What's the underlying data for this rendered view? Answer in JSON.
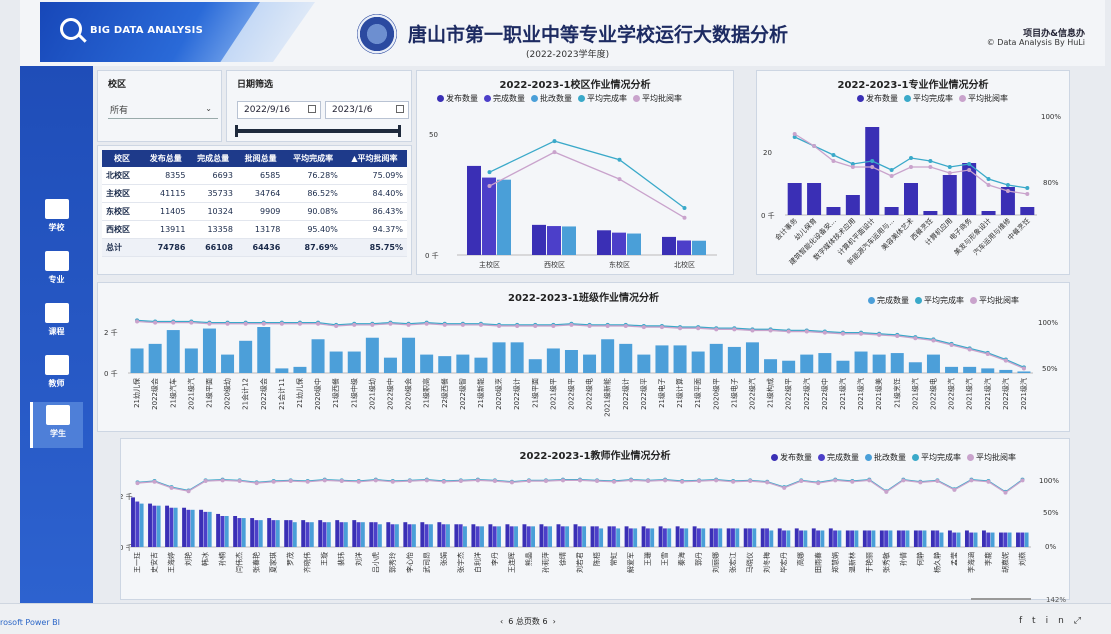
{
  "header": {
    "brand": "BIG DATA ANALYSIS",
    "title": "唐山市第一职业中等专业学校运行大数据分析",
    "subtitle": "(2022-2023学年度)",
    "org": "项目办&信息办",
    "copyright": "© Data Analysis By HuLi"
  },
  "nav": [
    {
      "label": "学校",
      "icon": "school-icon"
    },
    {
      "label": "专业",
      "icon": "briefcase-icon"
    },
    {
      "label": "课程",
      "icon": "course-icon"
    },
    {
      "label": "教师",
      "icon": "teacher-icon"
    },
    {
      "label": "学生",
      "icon": "student-icon"
    }
  ],
  "filters": {
    "campus_label": "校区",
    "campus_value": "所有",
    "date_label": "日期筛选",
    "date_start": "2022/9/16",
    "date_end": "2023/1/6"
  },
  "summary_table": {
    "headers": [
      "校区",
      "发布总量",
      "完成总量",
      "批阅总量",
      "平均完成率",
      "平均批阅率"
    ],
    "sort_mark": "▲",
    "rows": [
      [
        "北校区",
        "8355",
        "6693",
        "6585",
        "76.28%",
        "75.09%"
      ],
      [
        "主校区",
        "41115",
        "35733",
        "34764",
        "86.52%",
        "84.40%"
      ],
      [
        "东校区",
        "11405",
        "10324",
        "9909",
        "90.08%",
        "86.43%"
      ],
      [
        "西校区",
        "13911",
        "13358",
        "13178",
        "95.40%",
        "94.37%"
      ]
    ],
    "total": [
      "总计",
      "74786",
      "66108",
      "64436",
      "87.69%",
      "85.75%"
    ]
  },
  "colors": {
    "publish": "#3a2fb5",
    "complete": "#4c3fc9",
    "review": "#4a9fd8",
    "avg_complete": "#3aa9c9",
    "avg_review": "#c9a3cc",
    "bar_blue": "#4c9fd9"
  },
  "campus_chart": {
    "title": "2022-2023-1校区作业情况分析",
    "legend": [
      "发布数量",
      "完成数量",
      "批改数量",
      "平均完成率",
      "平均批阅率"
    ],
    "y_ticks": [
      "50",
      "0 千"
    ],
    "chart_data": {
      "type": "bar",
      "categories": [
        "主校区",
        "西校区",
        "东校区",
        "北校区"
      ],
      "series": [
        {
          "name": "发布数量",
          "values": [
            41115,
            13911,
            11405,
            8355
          ]
        },
        {
          "name": "完成数量",
          "values": [
            35733,
            13358,
            10324,
            6693
          ]
        },
        {
          "name": "批改数量",
          "values": [
            34764,
            13178,
            9909,
            6585
          ]
        },
        {
          "name": "平均完成率",
          "values": [
            86.52,
            95.4,
            90.08,
            76.28
          ]
        },
        {
          "name": "平均批阅率",
          "values": [
            84.4,
            94.37,
            86.43,
            75.09
          ]
        }
      ],
      "ylim": [
        0,
        60
      ]
    }
  },
  "major_chart": {
    "title": "2022-2023-1专业作业情况分析",
    "legend": [
      "发布数量",
      "平均完成率",
      "平均批阅率"
    ],
    "y_ticks_left": [
      "20",
      "0 千"
    ],
    "y_ticks_right": [
      "100%",
      "80%"
    ],
    "chart_data": {
      "type": "bar",
      "categories": [
        "会计事务",
        "幼儿保育",
        "建筑智能化设备安...",
        "数字媒体技术应用",
        "计算机平面设计",
        "新能源汽车运用与...",
        "美容美体艺术",
        "西餐烹饪",
        "计算机应用",
        "电子商务",
        "美发与形象设计",
        "汽车运用与维修",
        "中餐烹饪"
      ],
      "series": [
        {
          "name": "发布数量",
          "values": [
            8,
            8,
            2,
            5,
            22,
            2,
            8,
            1,
            10,
            13,
            1,
            7,
            2
          ]
        },
        {
          "name": "平均完成率",
          "values": [
            96,
            93,
            90,
            87,
            88,
            85,
            89,
            88,
            86,
            87,
            82,
            80,
            79
          ]
        },
        {
          "name": "平均批阅率",
          "values": [
            97,
            93,
            88,
            86,
            86,
            83,
            86,
            86,
            84,
            85,
            80,
            78,
            77
          ]
        }
      ],
      "ylim": [
        0,
        25
      ]
    }
  },
  "class_chart": {
    "title": "2022-2023-1班级作业情况分析",
    "legend": [
      "完成数量",
      "平均完成率",
      "平均批阅率"
    ],
    "y_ticks_left": [
      "2 千",
      "0 千"
    ],
    "y_ticks_right": [
      "100%",
      "50%"
    ],
    "chart_data": {
      "type": "bar",
      "categories": [
        "21幼儿保",
        "2022级会",
        "21级汽车",
        "2021级汽",
        "21级平面",
        "2020级幼",
        "21会计12",
        "2022级会",
        "21会计11",
        "21幼儿保",
        "2020级中",
        "21级西餐",
        "21级中级",
        "2021级幼",
        "2022级中",
        "2020级会",
        "21级职高",
        "22级西餐",
        "2022级智",
        "21级新能",
        "2020级烹",
        "2022级计",
        "21级平面",
        "2021级平",
        "2022级平",
        "2022级电",
        "2021级新能",
        "2022级计",
        "2022级平",
        "21级电子",
        "21级计算",
        "21级平面",
        "2020级平",
        "21级电子",
        "2022级汽",
        "21级构成",
        "2022级平",
        "2022级汽",
        "2022级中",
        "2021级汽",
        "2021级汽",
        "2021级美",
        "21级烹饪",
        "2021级汽",
        "2022级电",
        "2022级汽",
        "2021级汽",
        "2021级汽",
        "2022级汽",
        "2021级汽"
      ],
      "series": [
        {
          "name": "完成数量",
          "values": [
            1.6,
            1.9,
            2.8,
            1.6,
            2.9,
            1.2,
            2.1,
            3.0,
            0.3,
            0.4,
            2.2,
            1.4,
            1.4,
            2.3,
            1.0,
            2.3,
            1.2,
            1.1,
            1.2,
            1.0,
            2.0,
            2.0,
            0.9,
            1.6,
            1.5,
            1.2,
            2.2,
            1.9,
            1.2,
            1.8,
            1.8,
            1.4,
            1.9,
            1.7,
            2.0,
            0.9,
            0.8,
            1.2,
            1.3,
            0.8,
            1.4,
            1.2,
            1.3,
            0.7,
            1.2,
            0.4,
            0.4,
            0.3,
            0.2,
            0.1
          ]
        },
        {
          "name": "平均完成率",
          "values": [
            97,
            96,
            96,
            96,
            95,
            95,
            95,
            95,
            95,
            95,
            95,
            93,
            94,
            94,
            95,
            94,
            95,
            94,
            94,
            94,
            93,
            93,
            93,
            93,
            94,
            93,
            93,
            93,
            92,
            92,
            91,
            91,
            90,
            90,
            89,
            89,
            88,
            88,
            87,
            86,
            86,
            85,
            84,
            82,
            80,
            76,
            72,
            68,
            62,
            55
          ]
        },
        {
          "name": "平均批阅率",
          "values": [
            96,
            95,
            95,
            95,
            94,
            94,
            94,
            94,
            94,
            94,
            94,
            92,
            93,
            93,
            94,
            93,
            94,
            93,
            93,
            93,
            92,
            92,
            92,
            92,
            93,
            92,
            92,
            92,
            91,
            91,
            90,
            90,
            89,
            89,
            88,
            88,
            87,
            87,
            86,
            85,
            85,
            84,
            83,
            81,
            79,
            75,
            71,
            67,
            61,
            54
          ]
        }
      ],
      "ylim": [
        0,
        3
      ]
    }
  },
  "teacher_chart": {
    "title": "2022-2023-1教师作业情况分析",
    "legend": [
      "发布数量",
      "完成数量",
      "批改数量",
      "平均完成率",
      "平均批阅率"
    ],
    "y_ticks_left": [
      "2 千",
      "0 千"
    ],
    "y_ticks_right": [
      "100%",
      "50%",
      "0%"
    ],
    "chart_data": {
      "type": "bar",
      "categories": [
        "王一玨",
        "史安吉",
        "王海婷",
        "刘艳",
        "韩冰",
        "孙楠",
        "闫伟杰",
        "张春艳",
        "夏家琪",
        "罗茂",
        "齐晓伟",
        "王璇",
        "裴玮",
        "刘洋",
        "吕小虎",
        "郭秀玲",
        "李心怡",
        "武司昂",
        "张娟",
        "张宇杰",
        "白利洋",
        "李丹",
        "王连晖",
        "熊晶",
        "孙莉萍",
        "徐晴",
        "刘若君",
        "陈梧",
        "常虹",
        "解爱军",
        "王珊",
        "王雪",
        "秦海",
        "郭丹",
        "刘丽娜",
        "张宏江",
        "马晓仪",
        "刘冬梅",
        "毕宏丹",
        "高娜",
        "田雨春",
        "郑慧娟",
        "温新林",
        "于艳丽",
        "张秀敏",
        "孙倩",
        "何静",
        "杨久静",
        "孟莹",
        "李海涵",
        "李鹿",
        "胡嘉妮",
        "刘燕"
      ],
      "series": [
        {
          "name": "发布数量",
          "values": [
            2.4,
            2.1,
            2.0,
            1.9,
            1.8,
            1.6,
            1.5,
            1.4,
            1.4,
            1.3,
            1.3,
            1.3,
            1.3,
            1.3,
            1.2,
            1.2,
            1.2,
            1.2,
            1.2,
            1.1,
            1.1,
            1.1,
            1.1,
            1.1,
            1.1,
            1.1,
            1.1,
            1.0,
            1.0,
            1.0,
            1.0,
            1.0,
            1.0,
            1.0,
            0.9,
            0.9,
            0.9,
            0.9,
            0.9,
            0.9,
            0.9,
            0.9,
            0.8,
            0.8,
            0.8,
            0.8,
            0.8,
            0.8,
            0.8,
            0.8,
            0.8,
            0.7,
            0.7
          ]
        },
        {
          "name": "完成数量",
          "values": [
            2.2,
            2.0,
            1.9,
            1.8,
            1.7,
            1.5,
            1.4,
            1.3,
            1.3,
            1.3,
            1.2,
            1.2,
            1.2,
            1.2,
            1.2,
            1.1,
            1.1,
            1.1,
            1.1,
            1.1,
            1.0,
            1.0,
            1.0,
            1.0,
            1.0,
            1.0,
            1.0,
            1.0,
            1.0,
            0.9,
            0.9,
            0.9,
            0.9,
            0.9,
            0.9,
            0.9,
            0.9,
            0.9,
            0.8,
            0.8,
            0.8,
            0.8,
            0.8,
            0.8,
            0.8,
            0.8,
            0.8,
            0.8,
            0.7,
            0.7,
            0.7,
            0.7,
            0.7
          ]
        },
        {
          "name": "批改数量",
          "values": [
            2.1,
            2.0,
            1.9,
            1.8,
            1.7,
            1.5,
            1.4,
            1.3,
            1.3,
            1.2,
            1.2,
            1.2,
            1.2,
            1.2,
            1.1,
            1.1,
            1.1,
            1.1,
            1.1,
            1.0,
            1.0,
            1.0,
            1.0,
            1.0,
            1.0,
            1.0,
            1.0,
            0.9,
            0.9,
            0.9,
            0.9,
            0.9,
            0.9,
            0.9,
            0.9,
            0.9,
            0.9,
            0.8,
            0.8,
            0.8,
            0.8,
            0.8,
            0.8,
            0.8,
            0.8,
            0.8,
            0.8,
            0.7,
            0.7,
            0.7,
            0.7,
            0.7,
            0.7
          ]
        },
        {
          "name": "平均完成率",
          "values": [
            95,
            97,
            88,
            83,
            98,
            99,
            98,
            95,
            97,
            98,
            97,
            99,
            98,
            97,
            99,
            97,
            98,
            99,
            97,
            98,
            99,
            98,
            96,
            98,
            98,
            99,
            99,
            98,
            97,
            99,
            98,
            99,
            97,
            98,
            99,
            97,
            98,
            96,
            88,
            98,
            95,
            99,
            97,
            99,
            82,
            99,
            96,
            98,
            85,
            99,
            97,
            81,
            99
          ]
        },
        {
          "name": "平均批阅率",
          "values": [
            94,
            96,
            87,
            82,
            97,
            98,
            97,
            94,
            96,
            97,
            96,
            98,
            97,
            96,
            98,
            96,
            97,
            98,
            96,
            97,
            98,
            97,
            95,
            97,
            97,
            98,
            98,
            97,
            96,
            98,
            97,
            98,
            96,
            97,
            98,
            96,
            97,
            95,
            87,
            97,
            94,
            98,
            96,
            98,
            81,
            98,
            95,
            97,
            84,
            98,
            96,
            80,
            98
          ]
        }
      ],
      "ylim": [
        0,
        3
      ]
    }
  },
  "footer": {
    "powerbi": "rosoft Power BI",
    "pager": "6 总页数 6",
    "zoom": "142%"
  }
}
